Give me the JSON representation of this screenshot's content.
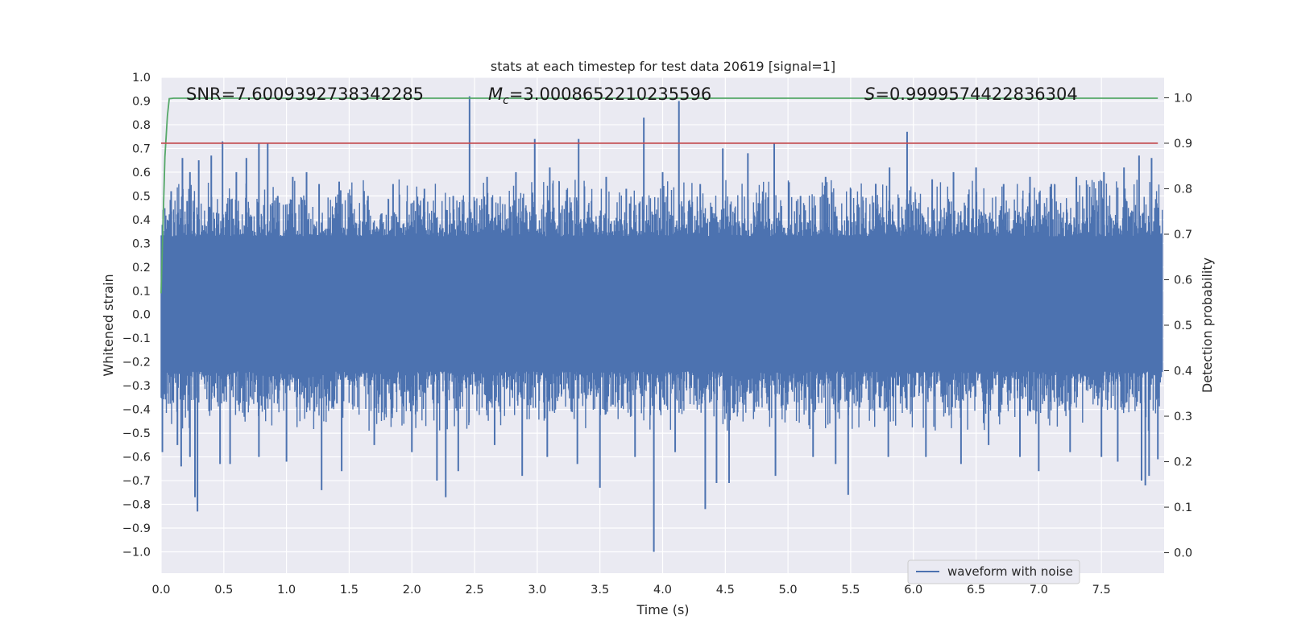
{
  "chart_data": {
    "type": "line",
    "title": "stats at each timestep for test data 20619 [signal=1]",
    "xlabel": "Time (s)",
    "ylabel": "Whitened strain",
    "y2label": "Detection probability",
    "xlim": [
      0,
      8.0
    ],
    "ylim": [
      -1.09,
      1.0
    ],
    "y2lim": [
      -0.045,
      1.045
    ],
    "grid": true,
    "legend": {
      "placement": "lower-right",
      "entries": [
        "waveform with noise"
      ]
    },
    "x_ticks": [
      "0.0",
      "0.5",
      "1.0",
      "1.5",
      "2.0",
      "2.5",
      "3.0",
      "3.5",
      "4.0",
      "4.5",
      "5.0",
      "5.5",
      "6.0",
      "6.5",
      "7.0",
      "7.5"
    ],
    "y_ticks": [
      "1.0",
      "0.9",
      "0.8",
      "0.7",
      "0.6",
      "0.5",
      "0.4",
      "0.3",
      "0.2",
      "0.1",
      "0.0",
      "−0.1",
      "−0.2",
      "−0.3",
      "−0.4",
      "−0.5",
      "−0.6",
      "−0.7",
      "−0.8",
      "−0.9",
      "−1.0"
    ],
    "y2_ticks": [
      "1.0",
      "0.9",
      "0.8",
      "0.7",
      "0.6",
      "0.5",
      "0.4",
      "0.3",
      "0.2",
      "0.1",
      "0.0"
    ],
    "annotations": {
      "snr": "SNR=7.6009392738342285",
      "mc_symbol": "M",
      "mc_sub": "c",
      "mc_value": "=3.0008652210235596",
      "s_symbol": "S",
      "s_value": "=0.9999574422836304"
    },
    "series": [
      {
        "name": "waveform with noise",
        "axis": "left",
        "color": "#4c72b0",
        "style": "dense noise fill",
        "core_band": [
          -0.24,
          0.33
        ],
        "peaks": [
          {
            "x": 0.08,
            "y": 0.52
          },
          {
            "x": 0.17,
            "y": 0.66
          },
          {
            "x": 0.23,
            "y": 0.6
          },
          {
            "x": 0.3,
            "y": 0.65
          },
          {
            "x": 0.4,
            "y": 0.67
          },
          {
            "x": 0.49,
            "y": 0.73
          },
          {
            "x": 0.6,
            "y": 0.6
          },
          {
            "x": 0.68,
            "y": 0.66
          },
          {
            "x": 0.78,
            "y": 0.72
          },
          {
            "x": 0.85,
            "y": 0.72
          },
          {
            "x": 0.93,
            "y": 0.5
          },
          {
            "x": 1.05,
            "y": 0.58
          },
          {
            "x": 1.16,
            "y": 0.6
          },
          {
            "x": 1.26,
            "y": 0.55
          },
          {
            "x": 1.42,
            "y": 0.56
          },
          {
            "x": 1.65,
            "y": 0.5
          },
          {
            "x": 1.85,
            "y": 0.55
          },
          {
            "x": 2.1,
            "y": 0.53
          },
          {
            "x": 2.33,
            "y": 0.5
          },
          {
            "x": 2.46,
            "y": 0.92
          },
          {
            "x": 2.6,
            "y": 0.58
          },
          {
            "x": 2.83,
            "y": 0.6
          },
          {
            "x": 2.98,
            "y": 0.74
          },
          {
            "x": 3.1,
            "y": 0.62
          },
          {
            "x": 3.33,
            "y": 0.74
          },
          {
            "x": 3.55,
            "y": 0.58
          },
          {
            "x": 3.71,
            "y": 0.53
          },
          {
            "x": 3.85,
            "y": 0.83
          },
          {
            "x": 4.0,
            "y": 0.6
          },
          {
            "x": 4.13,
            "y": 0.9
          },
          {
            "x": 4.3,
            "y": 0.55
          },
          {
            "x": 4.48,
            "y": 0.7
          },
          {
            "x": 4.68,
            "y": 0.68
          },
          {
            "x": 4.89,
            "y": 0.72
          },
          {
            "x": 5.1,
            "y": 0.5
          },
          {
            "x": 5.3,
            "y": 0.58
          },
          {
            "x": 5.5,
            "y": 0.53
          },
          {
            "x": 5.7,
            "y": 0.55
          },
          {
            "x": 5.81,
            "y": 0.62
          },
          {
            "x": 5.95,
            "y": 0.77
          },
          {
            "x": 6.15,
            "y": 0.57
          },
          {
            "x": 6.32,
            "y": 0.6
          },
          {
            "x": 6.5,
            "y": 0.62
          },
          {
            "x": 6.72,
            "y": 0.55
          },
          {
            "x": 6.93,
            "y": 0.58
          },
          {
            "x": 7.1,
            "y": 0.55
          },
          {
            "x": 7.3,
            "y": 0.58
          },
          {
            "x": 7.52,
            "y": 0.6
          },
          {
            "x": 7.68,
            "y": 0.62
          },
          {
            "x": 7.8,
            "y": 0.67
          },
          {
            "x": 7.9,
            "y": 0.66
          }
        ],
        "troughs": [
          {
            "x": 0.01,
            "y": -0.58
          },
          {
            "x": 0.13,
            "y": -0.55
          },
          {
            "x": 0.16,
            "y": -0.64
          },
          {
            "x": 0.23,
            "y": -0.6
          },
          {
            "x": 0.27,
            "y": -0.77
          },
          {
            "x": 0.29,
            "y": -0.83
          },
          {
            "x": 0.47,
            "y": -0.63
          },
          {
            "x": 0.55,
            "y": -0.63
          },
          {
            "x": 0.78,
            "y": -0.6
          },
          {
            "x": 1.0,
            "y": -0.62
          },
          {
            "x": 1.28,
            "y": -0.74
          },
          {
            "x": 1.44,
            "y": -0.66
          },
          {
            "x": 1.7,
            "y": -0.55
          },
          {
            "x": 2.0,
            "y": -0.58
          },
          {
            "x": 2.2,
            "y": -0.7
          },
          {
            "x": 2.27,
            "y": -0.77
          },
          {
            "x": 2.37,
            "y": -0.66
          },
          {
            "x": 2.66,
            "y": -0.55
          },
          {
            "x": 2.88,
            "y": -0.68
          },
          {
            "x": 3.08,
            "y": -0.6
          },
          {
            "x": 3.32,
            "y": -0.63
          },
          {
            "x": 3.5,
            "y": -0.73
          },
          {
            "x": 3.78,
            "y": -0.6
          },
          {
            "x": 3.93,
            "y": -1.0
          },
          {
            "x": 4.1,
            "y": -0.58
          },
          {
            "x": 4.34,
            "y": -0.82
          },
          {
            "x": 4.43,
            "y": -0.71
          },
          {
            "x": 4.53,
            "y": -0.71
          },
          {
            "x": 4.9,
            "y": -0.68
          },
          {
            "x": 5.2,
            "y": -0.6
          },
          {
            "x": 5.38,
            "y": -0.63
          },
          {
            "x": 5.48,
            "y": -0.76
          },
          {
            "x": 5.8,
            "y": -0.6
          },
          {
            "x": 6.1,
            "y": -0.6
          },
          {
            "x": 6.38,
            "y": -0.63
          },
          {
            "x": 6.6,
            "y": -0.55
          },
          {
            "x": 6.85,
            "y": -0.6
          },
          {
            "x": 7.0,
            "y": -0.66
          },
          {
            "x": 7.25,
            "y": -0.58
          },
          {
            "x": 7.5,
            "y": -0.6
          },
          {
            "x": 7.63,
            "y": -0.62
          },
          {
            "x": 7.82,
            "y": -0.7
          },
          {
            "x": 7.85,
            "y": -0.72
          },
          {
            "x": 7.88,
            "y": -0.68
          },
          {
            "x": 7.95,
            "y": -0.61
          }
        ]
      },
      {
        "name": "",
        "axis": "right",
        "color": "#55a868",
        "x": [
          0.0,
          0.015,
          0.03,
          0.05,
          0.065,
          0.1,
          0.3,
          1.0,
          2.0,
          4.0,
          6.0,
          7.95
        ],
        "values": [
          0.57,
          0.72,
          0.87,
          0.96,
          0.998,
          0.999,
          0.999,
          0.999,
          0.999,
          0.999,
          0.999,
          0.999
        ]
      },
      {
        "name": "",
        "axis": "right",
        "color": "#c44e52",
        "x": [
          0.0,
          7.95
        ],
        "values": [
          0.9,
          0.9
        ]
      }
    ]
  }
}
